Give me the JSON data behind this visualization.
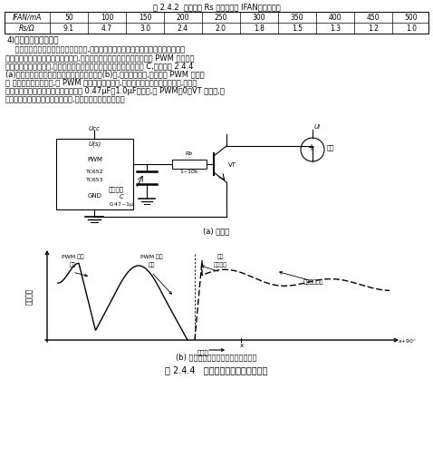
{
  "table_title": "表 2.4.2  检测电阻 Rs 与风扇电流 IFAN的对应关系",
  "table_headers": [
    "IFAN/mA",
    "50",
    "100",
    "150",
    "200",
    "250",
    "300",
    "350",
    "400",
    "450",
    "500"
  ],
  "table_row": [
    "Rs/Ω",
    "9.1",
    "4.7",
    "3.0",
    "2.4",
    "2.0",
    "1.8",
    "1.5",
    "1.3",
    "1.2",
    "1.0"
  ],
  "para_title": "4)减小风扇噪声的方法",
  "body_lines": [
    "    当风扇全速运行时所形成的扰动气流,是产生音频噪声的主要原因。采用风扇转速控制",
    "器能使风扇在低于全速的转速下运行,这有助于减小风扇噪声。对于在调节 PWM 信号的占",
    "空比时所引起音频噪声,可在驱动管的基极与地之间并联一只延迟电容 C,电路如图 2.4.4",
    "(a)所示。风扇转动力矩与电角度的关系曲线见(b)图,加延迟电容后,可滤掉在 PWM 开启风",
    "扇 时所形成的尖峰电压,对 PWM 信号起到平滑作用,使风扇的转动力矩平滑地变化,进而降",
    "低了风扇噪声。延迟电容的容量范围是 0.47μF～1.0μF。此外,当 PWM＝0、VT 关断时,延",
    "迟电容还能限制反向电动势的升高,对驱动管起到保护作用。"
  ],
  "circuit_caption": "(a) 电路图",
  "wave_caption": "(b) 风扇转动力矩与电角度的关系曲线",
  "fig_caption": "图 2.4.4   利用延迟电容抑制风扇噪声",
  "bg_color": "#ffffff"
}
